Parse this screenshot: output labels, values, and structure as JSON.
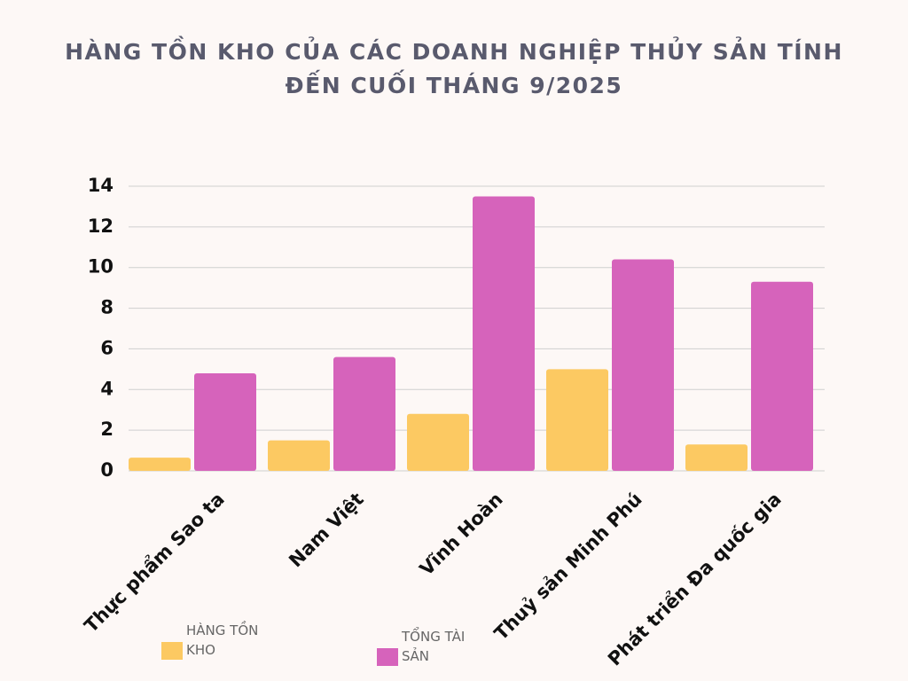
{
  "chart_data": {
    "type": "bar",
    "title": "HÀNG TỒN KHO CỦA CÁC DOANH NGHIỆP THỦY SẢN TÍNH ĐẾN CUỐI THÁNG 9/2025",
    "categories": [
      "Thực phẩm Sao ta",
      "Nam Việt",
      "Vĩnh Hoàn",
      "Thuỷ sản Minh Phú",
      "Phát triển Đa quốc gia"
    ],
    "series": [
      {
        "name": "HÀNG TỒN KHO",
        "color": "#fcc962",
        "values": [
          0.65,
          1.5,
          2.8,
          5.0,
          1.3
        ]
      },
      {
        "name": "TỔNG TÀI SẢN",
        "color": "#d663bb",
        "values": [
          4.8,
          5.6,
          13.5,
          10.4,
          9.3
        ]
      }
    ],
    "ylim": [
      0,
      14
    ],
    "yticks": [
      0,
      2,
      4,
      6,
      8,
      10,
      12,
      14
    ],
    "grid": true
  }
}
